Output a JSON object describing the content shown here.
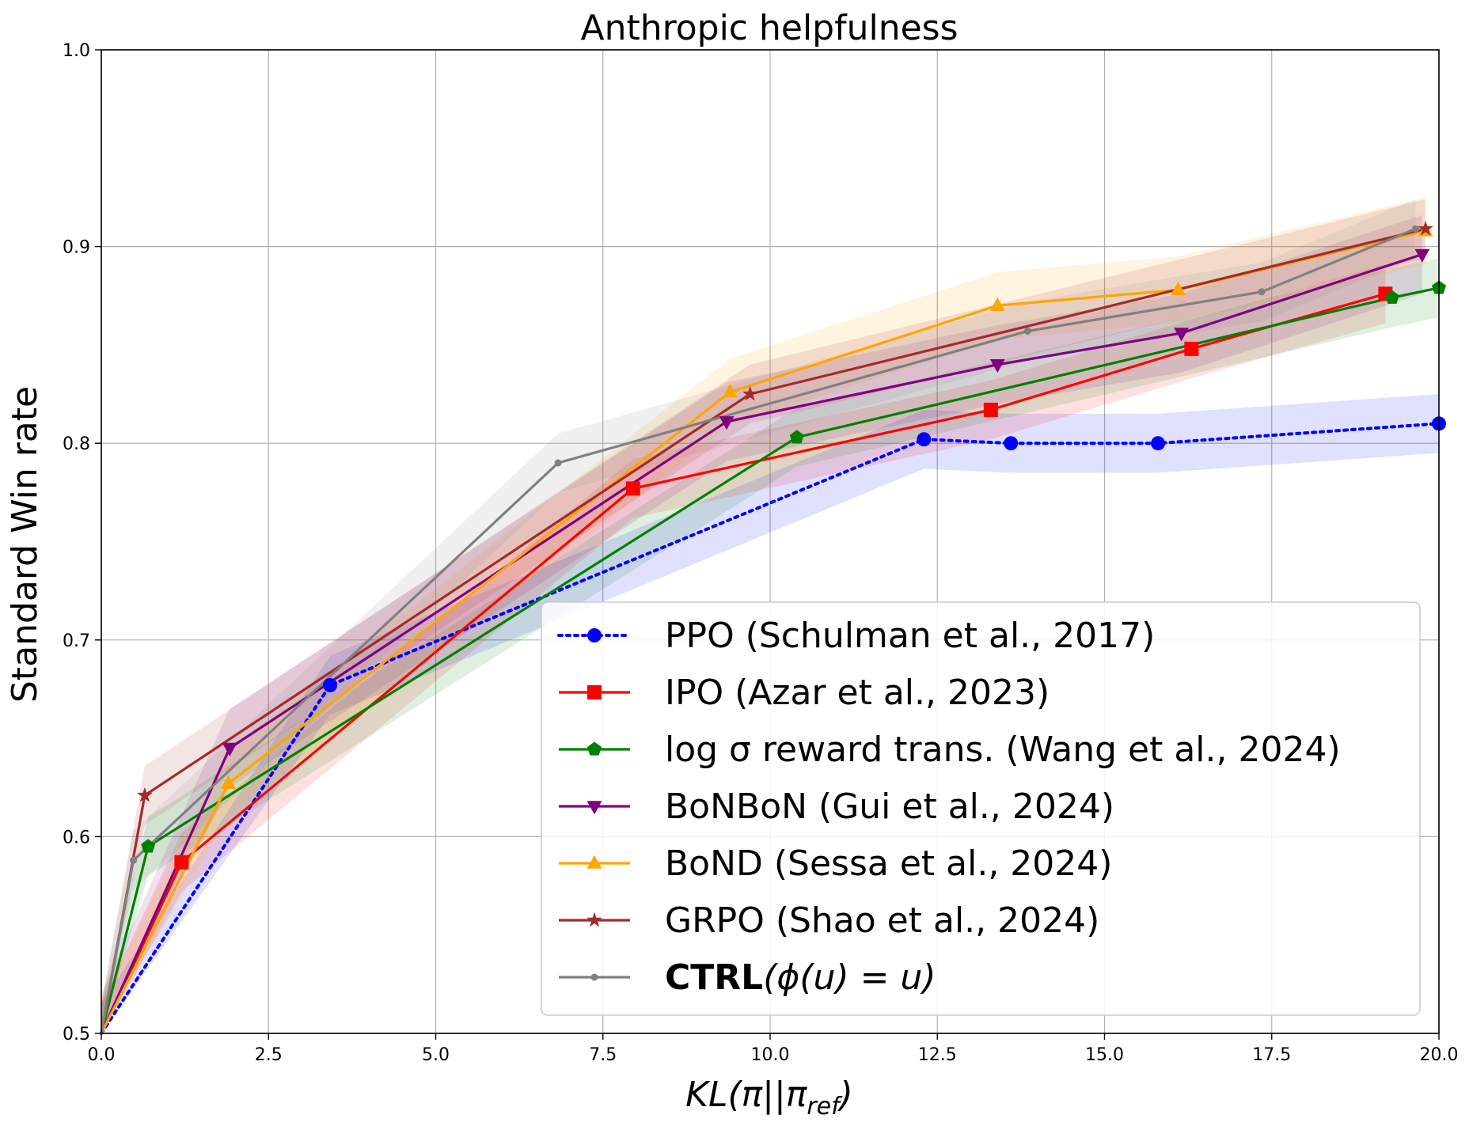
{
  "chart_data": {
    "type": "line",
    "title": "Anthropic helpfulness",
    "xlabel": "KL(π||π_ref)",
    "ylabel": "Standard Win rate",
    "xlim": [
      0,
      20
    ],
    "ylim": [
      0.5,
      1.0
    ],
    "xticks": [
      0,
      2.5,
      5,
      7.5,
      10,
      12.5,
      15,
      17.5,
      20
    ],
    "xtick_labels": [
      "0.0",
      "2.5",
      "5.0",
      "7.5",
      "10.0",
      "12.5",
      "15.0",
      "17.5",
      "20.0"
    ],
    "yticks": [
      0.5,
      0.6,
      0.7,
      0.8,
      0.9,
      1.0
    ],
    "ytick_labels": [
      "0.5",
      "0.6",
      "0.7",
      "0.8",
      "0.9",
      "1.0"
    ],
    "grid": true,
    "legend_position": "lower-right",
    "series": [
      {
        "name": "PPO (Schulman et al., 2017)",
        "color": "#0000ff",
        "marker": "circle",
        "linestyle": "dotted",
        "x": [
          0.0,
          3.42,
          12.3,
          13.6,
          15.8,
          20.0
        ],
        "y": [
          0.5,
          0.677,
          0.802,
          0.8,
          0.8,
          0.81
        ],
        "band": 0.015
      },
      {
        "name": "IPO (Azar et al., 2023)",
        "color": "#ff0000",
        "marker": "square",
        "linestyle": "solid",
        "x": [
          0.0,
          1.2,
          7.95,
          13.3,
          16.3,
          19.2
        ],
        "y": [
          0.5,
          0.587,
          0.777,
          0.817,
          0.848,
          0.876
        ],
        "band": 0.015
      },
      {
        "name": "log σ reward trans. (Wang et al., 2024)",
        "color": "#008000",
        "marker": "pentagon",
        "linestyle": "solid",
        "x": [
          0.0,
          0.7,
          10.4,
          19.3,
          20.0
        ],
        "y": [
          0.5,
          0.595,
          0.803,
          0.874,
          0.879
        ],
        "band": 0.015
      },
      {
        "name": "BoNBoN (Gui et al., 2024)",
        "color": "#800080",
        "marker": "triangle-down",
        "linestyle": "solid",
        "x": [
          0.0,
          1.92,
          9.35,
          13.4,
          16.15,
          19.75
        ],
        "y": [
          0.5,
          0.645,
          0.811,
          0.84,
          0.856,
          0.896
        ],
        "band": 0.02
      },
      {
        "name": "BoND (Sessa et al., 2024)",
        "color": "#ffa500",
        "marker": "triangle-up",
        "linestyle": "solid",
        "x": [
          0.0,
          1.9,
          9.4,
          13.4,
          16.1,
          19.8
        ],
        "y": [
          0.5,
          0.627,
          0.826,
          0.87,
          0.878,
          0.908
        ],
        "band": 0.017
      },
      {
        "name": "GRPO (Shao et al., 2024)",
        "color": "#a52a2a",
        "marker": "star",
        "linestyle": "solid",
        "x": [
          0.0,
          0.65,
          9.7,
          19.8
        ],
        "y": [
          0.5,
          0.621,
          0.825,
          0.909
        ],
        "band": 0.015
      },
      {
        "name": "CTRL(ϕ(u) = u)",
        "color": "#808080",
        "marker": "dot",
        "linestyle": "solid",
        "x": [
          0.0,
          0.48,
          6.83,
          13.85,
          17.35,
          19.65
        ],
        "y": [
          0.5,
          0.588,
          0.79,
          0.857,
          0.877,
          0.909
        ],
        "band": 0.015
      }
    ]
  }
}
